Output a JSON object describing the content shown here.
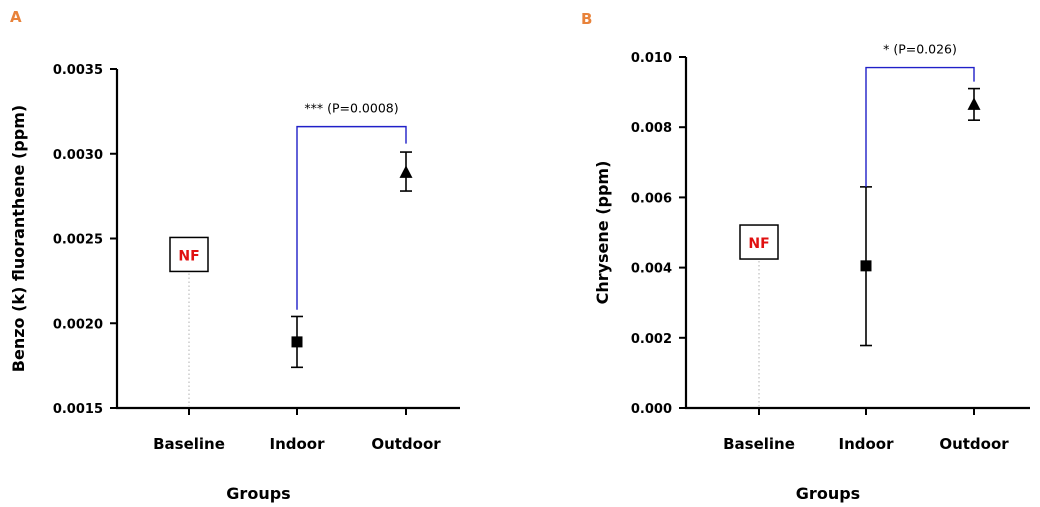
{
  "colors": {
    "panel_letter": "#e8823a",
    "significance_bracket": "#2020c8",
    "nf_text": "#e01010",
    "marker": "#000000",
    "dotted_line": "#b0b0b0"
  },
  "chart_data": [
    {
      "panel": "A",
      "type": "scatter",
      "categories": [
        "Baseline",
        "Indoor",
        "Outdoor"
      ],
      "xlabel": "Groups",
      "ylabel": "Benzo (k) fluoranthene (ppm)",
      "ylim": [
        0.0015,
        0.0035
      ],
      "yticks": [
        "0.0015",
        "0.0020",
        "0.0025",
        "0.0030",
        "0.0035"
      ],
      "grid": false,
      "points": [
        {
          "category": "Baseline",
          "value": null,
          "label": "NF",
          "label_at": 0.0024
        },
        {
          "category": "Indoor",
          "value": 0.00189,
          "err_low": 0.00174,
          "err_high": 0.00204,
          "marker": "square"
        },
        {
          "category": "Outdoor",
          "value": 0.00289,
          "err_low": 0.00278,
          "err_high": 0.00301,
          "marker": "triangle"
        }
      ],
      "significance": {
        "from": "Indoor",
        "to": "Outdoor",
        "text": "*** (P=0.0008)",
        "top": 0.00316,
        "from_end": 0.00208,
        "to_end": 0.00306
      }
    },
    {
      "panel": "B",
      "type": "scatter",
      "categories": [
        "Baseline",
        "Indoor",
        "Outdoor"
      ],
      "xlabel": "Groups",
      "ylabel": "Chrysene (ppm)",
      "ylim": [
        0.0,
        0.01
      ],
      "yticks": [
        "0.000",
        "0.002",
        "0.004",
        "0.006",
        "0.008",
        "0.010"
      ],
      "grid": false,
      "points": [
        {
          "category": "Baseline",
          "value": null,
          "label": "NF",
          "label_at": 0.0047
        },
        {
          "category": "Indoor",
          "value": 0.00405,
          "err_low": 0.00178,
          "err_high": 0.0063,
          "marker": "square"
        },
        {
          "category": "Outdoor",
          "value": 0.00865,
          "err_low": 0.0082,
          "err_high": 0.0091,
          "marker": "triangle"
        }
      ],
      "significance": {
        "from": "Indoor",
        "to": "Outdoor",
        "text": "* (P=0.026)",
        "top": 0.0097,
        "from_end": 0.0063,
        "to_end": 0.0093
      }
    }
  ]
}
